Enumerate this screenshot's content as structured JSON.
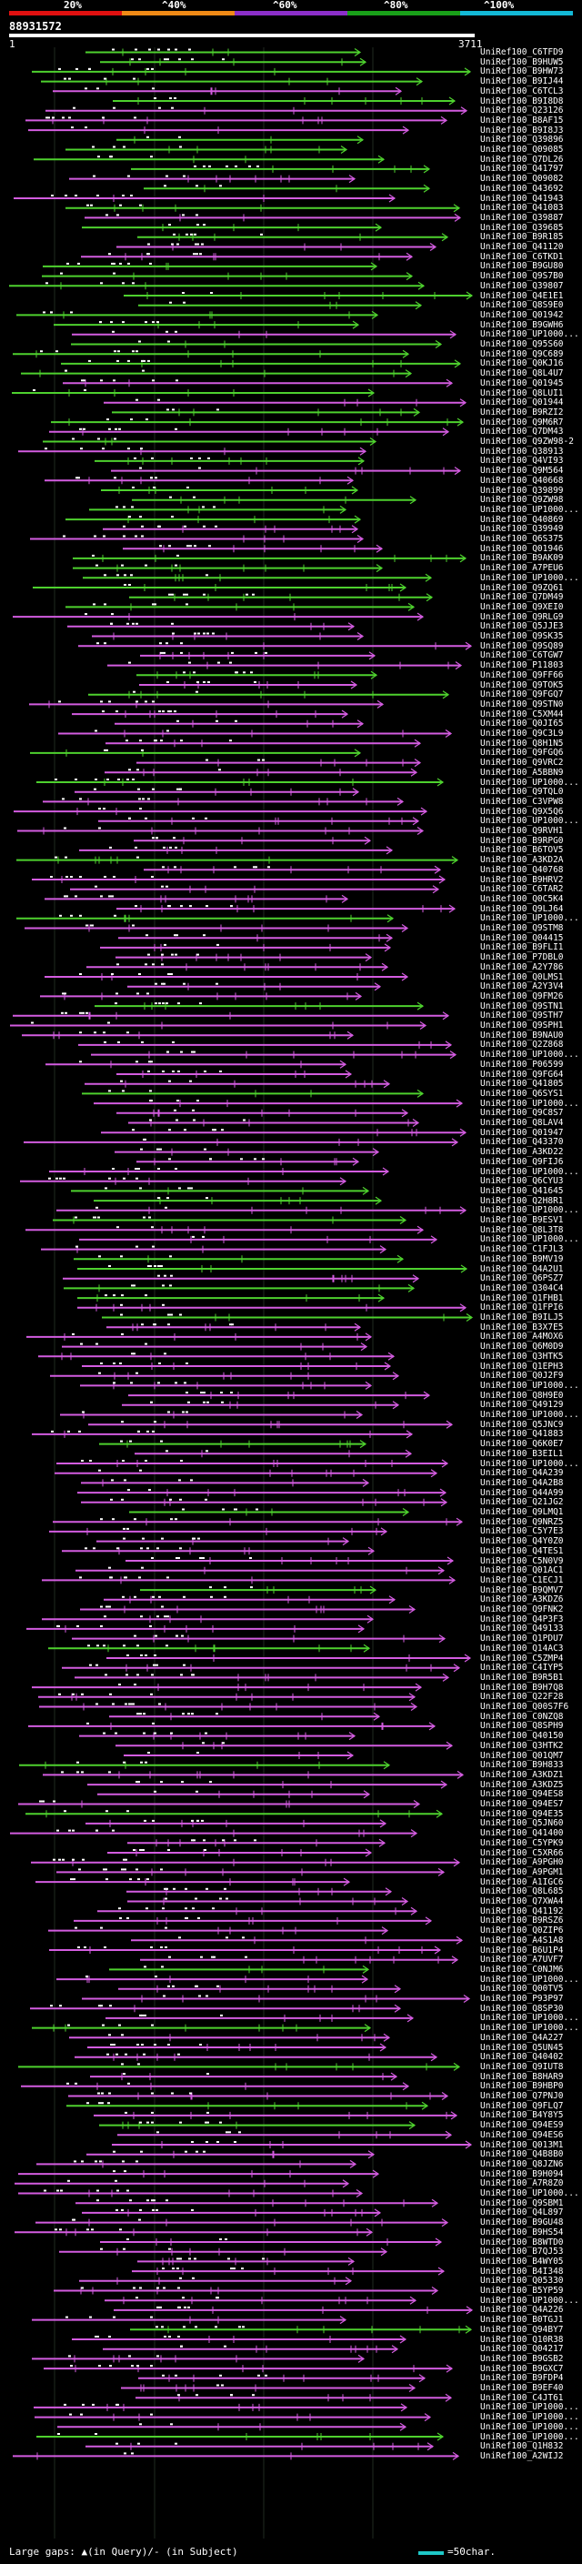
{
  "header": {
    "percent_marks": [
      "20%",
      "^40%",
      "^60%",
      "^80%",
      "^100%"
    ],
    "band_colors": [
      "#e01010",
      "#f08a16",
      "#8c2fc9",
      "#19a019",
      "#13b9d6"
    ],
    "query_id": "88931572",
    "scale_start": "1",
    "scale_end": "3711"
  },
  "hits": [
    "UniRef100_C6TFD9",
    "UniRef100_B9HUW5",
    "UniRef100_B9HW73",
    "UniRef100_B9IJ44",
    "UniRef100_C6TCL3",
    "UniRef100_B9I8D8",
    "UniRef100_Q23126",
    "UniRef100_B8AF15",
    "UniRef100_B9I8J3",
    "UniRef100_Q39896",
    "UniRef100_Q09085",
    "UniRef100_Q7DL26",
    "UniRef100_Q41797",
    "UniRef100_Q09082",
    "UniRef100_Q43692",
    "UniRef100_Q41943",
    "UniRef100_Q41083",
    "UniRef100_Q39887",
    "UniRef100_Q39685",
    "UniRef100_B9R185",
    "UniRef100_Q41120",
    "UniRef100_C6TKD1",
    "UniRef100_B9GU80",
    "UniRef100_Q9S7B0",
    "UniRef100_Q39807",
    "UniRef100_Q4E1E1",
    "UniRef100_Q8S9E0",
    "UniRef100_Q01942",
    "UniRef100_B9GWH6",
    "UniRef100_UP1000...",
    "UniRef100_Q95S60",
    "UniRef100_Q9C689",
    "UniRef100_Q0KJ16",
    "UniRef100_Q8L4U7",
    "UniRef100_Q01945",
    "UniRef100_Q8LUI1",
    "UniRef100_Q01944",
    "UniRef100_B9RZI2",
    "UniRef100_Q9M6R7",
    "UniRef100_Q7DM43",
    "UniRef100_Q9ZW98-2",
    "UniRef100_Q38913",
    "UniRef100_Q4VI93",
    "UniRef100_Q9M564",
    "UniRef100_Q40668",
    "UniRef100_Q39899",
    "UniRef100_Q9ZW98",
    "UniRef100_UP1000...",
    "UniRef100_Q40869",
    "UniRef100_Q39949",
    "UniRef100_Q6S375",
    "UniRef100_Q01946",
    "UniRef100_B9AK09",
    "UniRef100_A7PEU6",
    "UniRef100_UP1000...",
    "UniRef100_Q9ZQ61",
    "UniRef100_Q7DM49",
    "UniRef100_Q9XEI0",
    "UniRef100_Q9RLG9",
    "UniRef100_Q5JJE3",
    "UniRef100_Q9SK35",
    "UniRef100_Q9SQ89",
    "UniRef100_C6TGW7",
    "UniRef100_P11803",
    "UniRef100_Q9FF66",
    "UniRef100_Q9TOK5",
    "UniRef100_Q9FGQ7",
    "UniRef100_Q9STN0",
    "UniRef100_C5XM44",
    "UniRef100_Q0JI65",
    "UniRef100_Q9C3L9",
    "UniRef100_Q8H1N5",
    "UniRef100_Q9FGQ6",
    "UniRef100_Q9VRC2",
    "UniRef100_A5BBN9",
    "UniRef100_UP1000...",
    "UniRef100_Q9TQL0",
    "UniRef100_C3VPW8",
    "UniRef100_Q9X5Q6",
    "UniRef100_UP1000...",
    "UniRef100_Q9RVH1",
    "UniRef100_B9RPG0",
    "UniRef100_B6TOV5",
    "UniRef100_A3KD2A",
    "UniRef100_Q40768",
    "UniRef100_B9HRV2",
    "UniRef100_C6TAR2",
    "UniRef100_Q0C5K4",
    "UniRef100_Q9LJ64",
    "UniRef100_UP1000...",
    "UniRef100_Q9STM8",
    "UniRef100_Q04415",
    "UniRef100_B9FLI1",
    "UniRef100_P7DBL0",
    "UniRef100_A2Y786",
    "UniRef100_Q0LMS1",
    "UniRef100_A2Y3V4",
    "UniRef100_Q9FM26",
    "UniRef100_Q9STN1",
    "UniRef100_Q9STH7",
    "UniRef100_Q9SPH1",
    "UniRef100_B9NAU0",
    "UniRef100_Q2Z868",
    "UniRef100_UP1000...",
    "UniRef100_P06599",
    "UniRef100_Q9FG64",
    "UniRef100_Q41805",
    "UniRef100_Q6SYS1",
    "UniRef100_UP1000...",
    "UniRef100_Q9C8S7",
    "UniRef100_Q8LAV4",
    "UniRef100_Q01947",
    "UniRef100_Q43370",
    "UniRef100_A3KD22",
    "UniRef100_Q9FIJ6",
    "UniRef100_UP1000...",
    "UniRef100_Q6CYU3",
    "UniRef100_Q41645",
    "UniRef100_Q2H8R1",
    "UniRef100_UP1000...",
    "UniRef100_B9ESV1",
    "UniRef100_Q8L3T8",
    "UniRef100_UP1000...",
    "UniRef100_C1FJL3",
    "UniRef100_B9MV19",
    "UniRef100_Q4A2U1",
    "UniRef100_Q6PSZ7",
    "UniRef100_Q304C4",
    "UniRef100_Q1FHB1",
    "UniRef100_Q1FPI6",
    "UniRef100_B9ILJ5",
    "UniRef100_B3X7E5",
    "UniRef100_A4MOX6",
    "UniRef100_Q6M0D9",
    "UniRef100_Q3HTK5",
    "UniRef100_Q1EPH3",
    "UniRef100_Q0J2F9",
    "UniRef100_UP1000...",
    "UniRef100_Q8H9E0",
    "UniRef100_Q49129",
    "UniRef100_UP1000...",
    "UniRef100_Q5JNC9",
    "UniRef100_Q41883",
    "UniRef100_Q6K0E7",
    "UniRef100_B3EIL1",
    "UniRef100_UP1000...",
    "UniRef100_Q4A239",
    "UniRef100_Q4A2B8",
    "UniRef100_Q44A99",
    "UniRef100_Q21JG2",
    "UniRef100_Q9LMQ1",
    "UniRef100_Q9NRZ5",
    "UniRef100_C5Y7E3",
    "UniRef100_Q4Y0Z0",
    "UniRef100_Q4TES1",
    "UniRef100_C5N0V9",
    "UniRef100_Q01AC1",
    "UniRef100_C1ECJ1",
    "UniRef100_B9QMV7",
    "UniRef100_A3KDZ6",
    "UniRef100_Q9FNK2",
    "UniRef100_Q4P3F3",
    "UniRef100_Q49133",
    "UniRef100_Q1PDU7",
    "UniRef100_Q14AC3",
    "UniRef100_C5ZMP4",
    "UniRef100_C4IYP5",
    "UniRef100_B9R5B1",
    "UniRef100_B9H7Q8",
    "UniRef100_Q22F28",
    "UniRef100_Q00S7F6",
    "UniRef100_C0NZQ8",
    "UniRef100_Q8SPH9",
    "UniRef100_Q40150",
    "UniRef100_Q3HTK2",
    "UniRef100_Q01QM7",
    "UniRef100_B9H833",
    "UniRef100_A3KDZ1",
    "UniRef100_A3KDZ5",
    "UniRef100_Q94ES8",
    "UniRef100_Q94ES7",
    "UniRef100_Q94E35",
    "UniRef100_Q5JN60",
    "UniRef100_Q41400",
    "UniRef100_C5YPK9",
    "UniRef100_C5XR66",
    "UniRef100_A9PGH0",
    "UniRef100_A9PGM1",
    "UniRef100_A1IGC6",
    "UniRef100_Q8L685",
    "UniRef100_Q7XWA4",
    "UniRef100_Q41192",
    "UniRef100_B9RSZ6",
    "UniRef100_Q0ZIP6",
    "UniRef100_A4S1A8",
    "UniRef100_B6U1P4",
    "UniRef100_A7UVF7",
    "UniRef100_C0NJM6",
    "UniRef100_UP1000...",
    "UniRef100_Q00TV5",
    "UniRef100_P93P97",
    "UniRef100_Q8SP30",
    "UniRef100_UP1000...",
    "UniRef100_UP1000...",
    "UniRef100_Q4A227",
    "UniRef100_Q5UN45",
    "UniRef100_Q40402",
    "UniRef100_Q9IUT8",
    "UniRef100_B8HAR9",
    "UniRef100_B9HBP0",
    "UniRef100_Q7PNJ0",
    "UniRef100_Q9FLQ7",
    "UniRef100_B4Y8Y5",
    "UniRef100_Q94ES9",
    "UniRef100_Q94ES6",
    "UniRef100_Q013M1",
    "UniRef100_Q4B8B0",
    "UniRef100_Q8JZN6",
    "UniRef100_B9H094",
    "UniRef100_A7R8Z0",
    "UniRef100_UP1000...",
    "UniRef100_Q9SBM1",
    "UniRef100_Q4L897",
    "UniRef100_B9GU48",
    "UniRef100_B9HS54",
    "UniRef100_B8WTD0",
    "UniRef100_B7QJ53",
    "UniRef100_B4WY05",
    "UniRef100_B4I348",
    "UniRef100_Q05330",
    "UniRef100_B5YP59",
    "UniRef100_UP1000...",
    "UniRef100_Q4A226",
    "UniRef100_B0TGJ1",
    "UniRef100_Q94BY7",
    "UniRef100_Q10R38",
    "UniRef100_Q04217",
    "UniRef100_B9GSB2",
    "UniRef100_B9GXC7",
    "UniRef100_B9FDP4",
    "UniRef100_B9EF40",
    "UniRef100_C4JT61",
    "UniRef100_UP1000...",
    "UniRef100_UP1000...",
    "UniRef100_UP1000...",
    "UniRef100_UP1000...",
    "UniRef100_Q1H832",
    "UniRef100_A2WIJ2"
  ],
  "footer": {
    "left_text": "Large gaps: ▲(in Query)/- (in Subject)",
    "right_text": "=50char.",
    "swatch_color": "#1ec8c8"
  }
}
